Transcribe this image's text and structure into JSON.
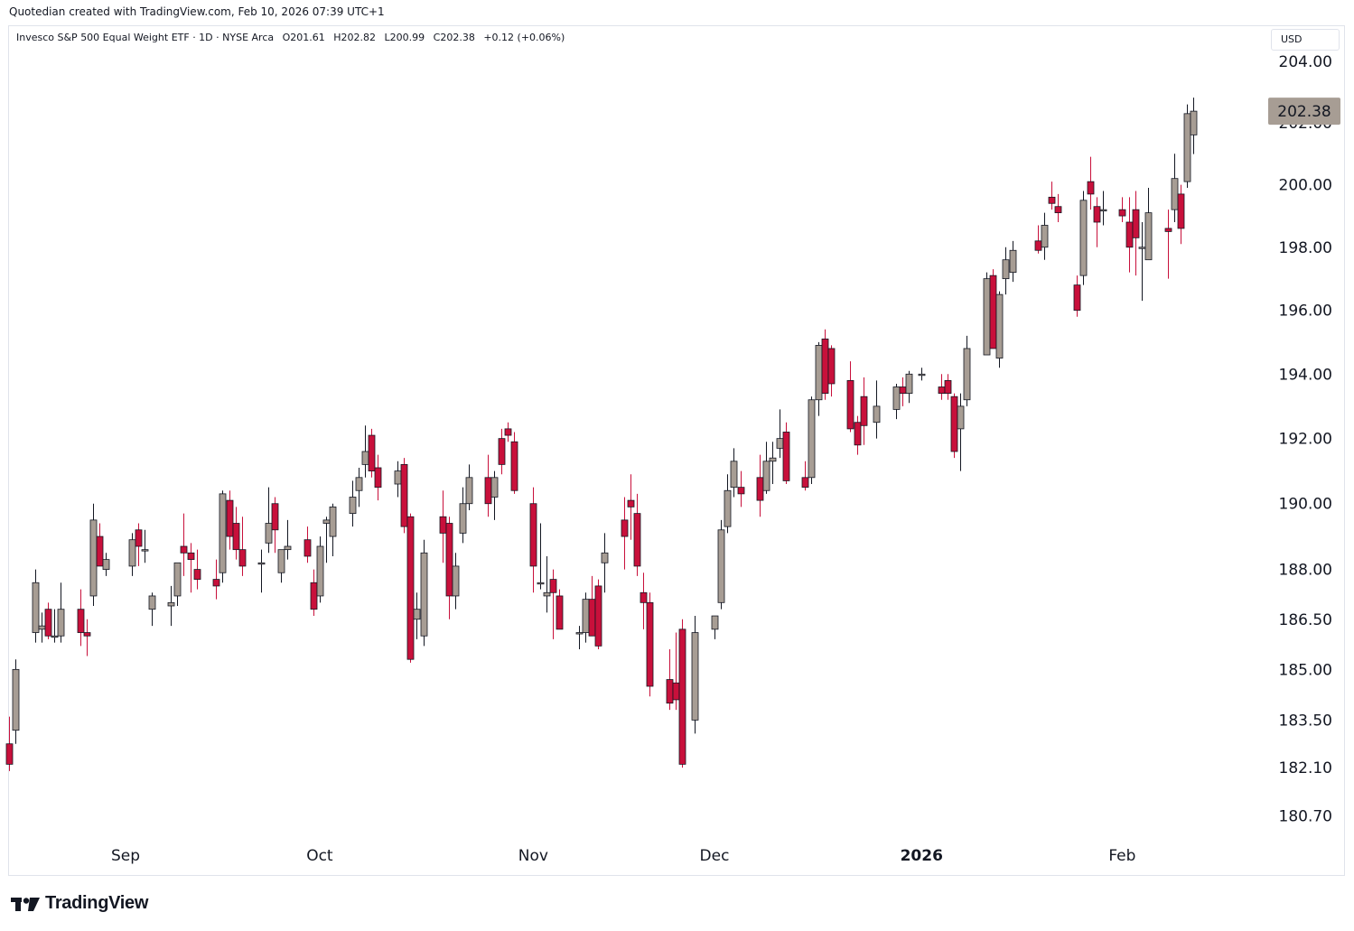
{
  "header": {
    "attribution": "Quotedian created with TradingView.com, Feb 10, 2026 07:39 UTC+1"
  },
  "legend": {
    "symbol": "Invesco S&P 500 Equal Weight ETF · 1D · NYSE Arca",
    "open": "O201.61",
    "high": "H202.82",
    "low": "L200.99",
    "close": "C202.38",
    "change": "+0.12 (+0.06%)"
  },
  "currency_button": "USD",
  "last_price_label": "202.38",
  "brand": {
    "name": "TradingView"
  },
  "colors": {
    "up": "#a79d94",
    "down": "#c8103b",
    "price_tag": "#a79d94",
    "text": "#131722",
    "border": "#e0e3eb"
  },
  "chart_data": {
    "type": "candlestick",
    "y_axis": {
      "tick_labels": [
        "204.00",
        "202.00",
        "200.00",
        "198.00",
        "196.00",
        "194.00",
        "192.00",
        "190.00",
        "188.00",
        "186.50",
        "185.00",
        "183.50",
        "182.10",
        "180.70"
      ],
      "tick_values": [
        204.0,
        202.0,
        200.0,
        198.0,
        196.0,
        194.0,
        192.0,
        190.0,
        188.0,
        186.5,
        185.0,
        183.5,
        182.1,
        180.7
      ],
      "scale": "log",
      "range": [
        180.0,
        204.6
      ]
    },
    "x_axis": {
      "tick_labels": [
        "Sep",
        "Oct",
        "Nov",
        "Dec",
        "2026",
        "Feb"
      ],
      "tick_dates": [
        "2025-09-01",
        "2025-10-01",
        "2025-11-03",
        "2025-12-01",
        "2026-01-02",
        "2026-02-02"
      ],
      "range": [
        "2025-08-14",
        "2026-02-24"
      ]
    },
    "grid": false,
    "candles": [
      {
        "date": "2025-08-14",
        "o": 182.8,
        "h": 183.6,
        "l": 182.0,
        "c": 182.2
      },
      {
        "date": "2025-08-15",
        "o": 183.2,
        "h": 185.3,
        "l": 182.8,
        "c": 185.0
      },
      {
        "date": "2025-08-18",
        "o": 186.1,
        "h": 188.0,
        "l": 185.8,
        "c": 187.6
      },
      {
        "date": "2025-08-19",
        "o": 186.2,
        "h": 186.7,
        "l": 185.8,
        "c": 186.3
      },
      {
        "date": "2025-08-20",
        "o": 186.8,
        "h": 187.0,
        "l": 185.9,
        "c": 186.0
      },
      {
        "date": "2025-08-21",
        "o": 186.0,
        "h": 186.8,
        "l": 185.8,
        "c": 186.0
      },
      {
        "date": "2025-08-22",
        "o": 186.0,
        "h": 187.6,
        "l": 185.8,
        "c": 186.8
      },
      {
        "date": "2025-08-25",
        "o": 186.8,
        "h": 187.4,
        "l": 185.7,
        "c": 186.1
      },
      {
        "date": "2025-08-26",
        "o": 186.1,
        "h": 186.5,
        "l": 185.4,
        "c": 186.0
      },
      {
        "date": "2025-08-27",
        "o": 187.2,
        "h": 190.0,
        "l": 186.9,
        "c": 189.5
      },
      {
        "date": "2025-08-28",
        "o": 189.0,
        "h": 189.4,
        "l": 188.2,
        "c": 188.1
      },
      {
        "date": "2025-08-29",
        "o": 188.0,
        "h": 188.5,
        "l": 187.8,
        "c": 188.3
      },
      {
        "date": "2025-09-02",
        "o": 188.1,
        "h": 189.1,
        "l": 187.8,
        "c": 188.9
      },
      {
        "date": "2025-09-03",
        "o": 189.2,
        "h": 189.4,
        "l": 188.1,
        "c": 188.7
      },
      {
        "date": "2025-09-04",
        "o": 188.6,
        "h": 189.2,
        "l": 188.2,
        "c": 188.6
      },
      {
        "date": "2025-09-05",
        "o": 186.8,
        "h": 187.3,
        "l": 186.3,
        "c": 187.2
      },
      {
        "date": "2025-09-08",
        "o": 186.9,
        "h": 187.5,
        "l": 186.3,
        "c": 187.0
      },
      {
        "date": "2025-09-09",
        "o": 187.2,
        "h": 188.2,
        "l": 186.9,
        "c": 188.2
      },
      {
        "date": "2025-09-10",
        "o": 188.7,
        "h": 189.7,
        "l": 187.8,
        "c": 188.5
      },
      {
        "date": "2025-09-11",
        "o": 188.5,
        "h": 188.8,
        "l": 187.3,
        "c": 188.3
      },
      {
        "date": "2025-09-12",
        "o": 188.0,
        "h": 188.6,
        "l": 187.4,
        "c": 187.7
      },
      {
        "date": "2025-09-15",
        "o": 187.7,
        "h": 188.3,
        "l": 187.1,
        "c": 187.5
      },
      {
        "date": "2025-09-16",
        "o": 187.9,
        "h": 190.4,
        "l": 187.6,
        "c": 190.3
      },
      {
        "date": "2025-09-17",
        "o": 190.1,
        "h": 190.4,
        "l": 188.6,
        "c": 189.0
      },
      {
        "date": "2025-09-18",
        "o": 189.4,
        "h": 189.9,
        "l": 188.3,
        "c": 188.6
      },
      {
        "date": "2025-09-19",
        "o": 188.6,
        "h": 189.6,
        "l": 187.8,
        "c": 188.1
      },
      {
        "date": "2025-09-22",
        "o": 188.2,
        "h": 188.6,
        "l": 187.3,
        "c": 188.2
      },
      {
        "date": "2025-09-23",
        "o": 188.8,
        "h": 190.5,
        "l": 188.5,
        "c": 189.4
      },
      {
        "date": "2025-09-24",
        "o": 190.0,
        "h": 190.2,
        "l": 188.5,
        "c": 189.2
      },
      {
        "date": "2025-09-25",
        "o": 187.9,
        "h": 188.4,
        "l": 187.6,
        "c": 188.6
      },
      {
        "date": "2025-09-26",
        "o": 188.6,
        "h": 189.5,
        "l": 188.3,
        "c": 188.7
      },
      {
        "date": "2025-09-29",
        "o": 188.9,
        "h": 189.3,
        "l": 188.2,
        "c": 188.4
      },
      {
        "date": "2025-09-30",
        "o": 187.6,
        "h": 188.0,
        "l": 186.6,
        "c": 186.8
      },
      {
        "date": "2025-10-01",
        "o": 187.2,
        "h": 189.0,
        "l": 187.0,
        "c": 188.7
      },
      {
        "date": "2025-10-02",
        "o": 189.4,
        "h": 189.6,
        "l": 188.2,
        "c": 189.5
      },
      {
        "date": "2025-10-03",
        "o": 189.0,
        "h": 190.0,
        "l": 188.4,
        "c": 189.9
      },
      {
        "date": "2025-10-06",
        "o": 189.7,
        "h": 190.7,
        "l": 189.3,
        "c": 190.2
      },
      {
        "date": "2025-10-07",
        "o": 190.4,
        "h": 191.1,
        "l": 189.9,
        "c": 190.8
      },
      {
        "date": "2025-10-08",
        "o": 191.2,
        "h": 192.4,
        "l": 190.8,
        "c": 191.6
      },
      {
        "date": "2025-10-09",
        "o": 192.1,
        "h": 192.3,
        "l": 190.8,
        "c": 191.0
      },
      {
        "date": "2025-10-10",
        "o": 191.1,
        "h": 191.5,
        "l": 190.1,
        "c": 190.5
      },
      {
        "date": "2025-10-13",
        "o": 190.6,
        "h": 191.3,
        "l": 190.2,
        "c": 191.0
      },
      {
        "date": "2025-10-14",
        "o": 191.2,
        "h": 191.4,
        "l": 189.1,
        "c": 189.3
      },
      {
        "date": "2025-10-15",
        "o": 189.6,
        "h": 189.7,
        "l": 185.2,
        "c": 185.3
      },
      {
        "date": "2025-10-16",
        "o": 186.5,
        "h": 187.3,
        "l": 185.9,
        "c": 186.8
      },
      {
        "date": "2025-10-17",
        "o": 186.0,
        "h": 188.9,
        "l": 185.7,
        "c": 188.5
      },
      {
        "date": "2025-10-20",
        "o": 189.6,
        "h": 190.4,
        "l": 188.2,
        "c": 189.1
      },
      {
        "date": "2025-10-21",
        "o": 189.4,
        "h": 189.6,
        "l": 186.5,
        "c": 187.2
      },
      {
        "date": "2025-10-22",
        "o": 187.2,
        "h": 188.5,
        "l": 186.8,
        "c": 188.1
      },
      {
        "date": "2025-10-23",
        "o": 189.1,
        "h": 190.5,
        "l": 188.8,
        "c": 190.0
      },
      {
        "date": "2025-10-24",
        "o": 190.0,
        "h": 191.2,
        "l": 189.8,
        "c": 190.8
      },
      {
        "date": "2025-10-27",
        "o": 190.8,
        "h": 191.5,
        "l": 189.6,
        "c": 190.0
      },
      {
        "date": "2025-10-28",
        "o": 190.2,
        "h": 191.0,
        "l": 189.5,
        "c": 190.8
      },
      {
        "date": "2025-10-29",
        "o": 192.0,
        "h": 192.3,
        "l": 190.9,
        "c": 191.2
      },
      {
        "date": "2025-10-30",
        "o": 192.3,
        "h": 192.5,
        "l": 191.9,
        "c": 192.1
      },
      {
        "date": "2025-10-31",
        "o": 191.9,
        "h": 192.2,
        "l": 190.3,
        "c": 190.4
      },
      {
        "date": "2025-11-03",
        "o": 190.0,
        "h": 190.5,
        "l": 187.3,
        "c": 188.1
      },
      {
        "date": "2025-11-04",
        "o": 187.6,
        "h": 189.4,
        "l": 187.4,
        "c": 187.6
      },
      {
        "date": "2025-11-05",
        "o": 187.2,
        "h": 188.4,
        "l": 186.7,
        "c": 187.3
      },
      {
        "date": "2025-11-06",
        "o": 187.7,
        "h": 188.0,
        "l": 185.9,
        "c": 187.3
      },
      {
        "date": "2025-11-07",
        "o": 187.2,
        "h": 187.4,
        "l": 186.3,
        "c": 186.2
      },
      {
        "date": "2025-11-10",
        "o": 186.1,
        "h": 186.3,
        "l": 185.6,
        "c": 186.1
      },
      {
        "date": "2025-11-11",
        "o": 186.1,
        "h": 187.3,
        "l": 185.8,
        "c": 187.1
      },
      {
        "date": "2025-11-12",
        "o": 187.1,
        "h": 187.8,
        "l": 186.0,
        "c": 186.0
      },
      {
        "date": "2025-11-13",
        "o": 187.5,
        "h": 187.7,
        "l": 185.6,
        "c": 185.7
      },
      {
        "date": "2025-11-14",
        "o": 188.2,
        "h": 189.1,
        "l": 187.3,
        "c": 188.5
      },
      {
        "date": "2025-11-17",
        "o": 189.5,
        "h": 190.2,
        "l": 188.0,
        "c": 189.0
      },
      {
        "date": "2025-11-18",
        "o": 190.1,
        "h": 190.9,
        "l": 188.9,
        "c": 189.9
      },
      {
        "date": "2025-11-19",
        "o": 189.7,
        "h": 190.3,
        "l": 187.8,
        "c": 188.1
      },
      {
        "date": "2025-11-20",
        "o": 187.3,
        "h": 187.9,
        "l": 186.2,
        "c": 187.0
      },
      {
        "date": "2025-11-21",
        "o": 187.0,
        "h": 187.3,
        "l": 184.2,
        "c": 184.5
      },
      {
        "date": "2025-11-24",
        "o": 184.7,
        "h": 185.6,
        "l": 183.8,
        "c": 184.0
      },
      {
        "date": "2025-11-25",
        "o": 184.6,
        "h": 186.1,
        "l": 183.8,
        "c": 184.1
      },
      {
        "date": "2025-11-26",
        "o": 186.2,
        "h": 186.5,
        "l": 182.1,
        "c": 182.2
      },
      {
        "date": "2025-11-28",
        "o": 183.5,
        "h": 186.6,
        "l": 183.1,
        "c": 186.1
      },
      {
        "date": "2025-12-01",
        "o": 186.2,
        "h": 186.5,
        "l": 185.9,
        "c": 186.6
      },
      {
        "date": "2025-12-02",
        "o": 187.0,
        "h": 189.5,
        "l": 186.8,
        "c": 189.2
      },
      {
        "date": "2025-12-03",
        "o": 189.3,
        "h": 190.9,
        "l": 189.1,
        "c": 190.4
      },
      {
        "date": "2025-12-04",
        "o": 190.5,
        "h": 191.7,
        "l": 190.2,
        "c": 191.3
      },
      {
        "date": "2025-12-05",
        "o": 190.5,
        "h": 191.0,
        "l": 189.9,
        "c": 190.3
      },
      {
        "date": "2025-12-08",
        "o": 190.8,
        "h": 191.5,
        "l": 189.6,
        "c": 190.1
      },
      {
        "date": "2025-12-09",
        "o": 190.4,
        "h": 191.9,
        "l": 190.3,
        "c": 191.3
      },
      {
        "date": "2025-12-10",
        "o": 191.3,
        "h": 191.9,
        "l": 190.6,
        "c": 191.4
      },
      {
        "date": "2025-12-11",
        "o": 191.7,
        "h": 192.9,
        "l": 191.4,
        "c": 192.0
      },
      {
        "date": "2025-12-12",
        "o": 192.2,
        "h": 192.5,
        "l": 190.6,
        "c": 190.7
      },
      {
        "date": "2025-12-15",
        "o": 190.8,
        "h": 191.3,
        "l": 190.4,
        "c": 190.5
      },
      {
        "date": "2025-12-16",
        "o": 190.8,
        "h": 193.3,
        "l": 190.6,
        "c": 193.2
      },
      {
        "date": "2025-12-17",
        "o": 193.2,
        "h": 195.0,
        "l": 192.7,
        "c": 194.9
      },
      {
        "date": "2025-12-18",
        "o": 195.1,
        "h": 195.4,
        "l": 193.2,
        "c": 193.4
      },
      {
        "date": "2025-12-19",
        "o": 194.8,
        "h": 194.9,
        "l": 193.3,
        "c": 193.7
      },
      {
        "date": "2025-12-22",
        "o": 193.8,
        "h": 194.4,
        "l": 192.2,
        "c": 192.3
      },
      {
        "date": "2025-12-23",
        "o": 192.5,
        "h": 192.7,
        "l": 191.5,
        "c": 191.8
      },
      {
        "date": "2025-12-24",
        "o": 193.3,
        "h": 193.9,
        "l": 191.8,
        "c": 192.4
      },
      {
        "date": "2025-12-26",
        "o": 192.5,
        "h": 193.8,
        "l": 192.0,
        "c": 193.0
      },
      {
        "date": "2025-12-29",
        "o": 192.9,
        "h": 193.7,
        "l": 192.6,
        "c": 193.6
      },
      {
        "date": "2025-12-30",
        "o": 193.6,
        "h": 193.9,
        "l": 193.0,
        "c": 193.4
      },
      {
        "date": "2025-12-31",
        "o": 193.4,
        "h": 194.1,
        "l": 193.1,
        "c": 194.0
      },
      {
        "date": "2026-01-02",
        "o": 194.0,
        "h": 194.2,
        "l": 193.8,
        "c": 194.0
      },
      {
        "date": "2026-01-05",
        "o": 193.6,
        "h": 194.0,
        "l": 193.2,
        "c": 193.4
      },
      {
        "date": "2026-01-06",
        "o": 193.8,
        "h": 194.0,
        "l": 193.2,
        "c": 193.4
      },
      {
        "date": "2026-01-07",
        "o": 193.3,
        "h": 193.4,
        "l": 191.4,
        "c": 191.6
      },
      {
        "date": "2026-01-08",
        "o": 192.3,
        "h": 193.4,
        "l": 191.0,
        "c": 193.0
      },
      {
        "date": "2026-01-09",
        "o": 193.2,
        "h": 195.2,
        "l": 193.0,
        "c": 194.8
      },
      {
        "date": "2026-01-12",
        "o": 194.6,
        "h": 197.2,
        "l": 194.6,
        "c": 197.0
      },
      {
        "date": "2026-01-13",
        "o": 197.1,
        "h": 197.3,
        "l": 194.8,
        "c": 194.8
      },
      {
        "date": "2026-01-14",
        "o": 194.5,
        "h": 196.6,
        "l": 194.2,
        "c": 196.5
      },
      {
        "date": "2026-01-15",
        "o": 197.0,
        "h": 198.0,
        "l": 196.5,
        "c": 197.6
      },
      {
        "date": "2026-01-16",
        "o": 197.2,
        "h": 198.2,
        "l": 196.9,
        "c": 197.9
      },
      {
        "date": "2026-01-20",
        "o": 198.2,
        "h": 198.7,
        "l": 197.8,
        "c": 197.9
      },
      {
        "date": "2026-01-21",
        "o": 198.0,
        "h": 199.1,
        "l": 197.6,
        "c": 198.7
      },
      {
        "date": "2026-01-22",
        "o": 199.6,
        "h": 200.1,
        "l": 199.2,
        "c": 199.4
      },
      {
        "date": "2026-01-23",
        "o": 199.3,
        "h": 199.7,
        "l": 198.8,
        "c": 199.1
      },
      {
        "date": "2026-01-26",
        "o": 196.8,
        "h": 197.1,
        "l": 195.8,
        "c": 196.0
      },
      {
        "date": "2026-01-27",
        "o": 197.1,
        "h": 199.8,
        "l": 196.8,
        "c": 199.5
      },
      {
        "date": "2026-01-28",
        "o": 200.1,
        "h": 200.9,
        "l": 199.2,
        "c": 199.7
      },
      {
        "date": "2026-01-29",
        "o": 199.3,
        "h": 199.6,
        "l": 198.0,
        "c": 198.8
      },
      {
        "date": "2026-01-30",
        "o": 199.2,
        "h": 199.8,
        "l": 198.7,
        "c": 199.2
      },
      {
        "date": "2026-02-02",
        "o": 199.2,
        "h": 199.6,
        "l": 198.8,
        "c": 199.0
      },
      {
        "date": "2026-02-03",
        "o": 198.8,
        "h": 199.6,
        "l": 197.2,
        "c": 198.0
      },
      {
        "date": "2026-02-04",
        "o": 199.2,
        "h": 199.8,
        "l": 197.1,
        "c": 198.3
      },
      {
        "date": "2026-02-05",
        "o": 198.0,
        "h": 198.8,
        "l": 196.3,
        "c": 198.0
      },
      {
        "date": "2026-02-06",
        "o": 197.6,
        "h": 199.9,
        "l": 197.6,
        "c": 199.1
      },
      {
        "date": "2026-02-09",
        "o": 198.6,
        "h": 199.2,
        "l": 197.0,
        "c": 198.5
      },
      {
        "date": "2026-02-10",
        "o": 199.2,
        "h": 201.0,
        "l": 198.8,
        "c": 200.2
      },
      {
        "date": "2026-02-11",
        "o": 199.7,
        "h": 200.0,
        "l": 198.1,
        "c": 198.6
      },
      {
        "date": "2026-02-12",
        "o": 200.1,
        "h": 202.6,
        "l": 199.9,
        "c": 202.3
      },
      {
        "date": "2026-02-13",
        "o": 201.61,
        "h": 202.82,
        "l": 200.99,
        "c": 202.38
      }
    ]
  }
}
